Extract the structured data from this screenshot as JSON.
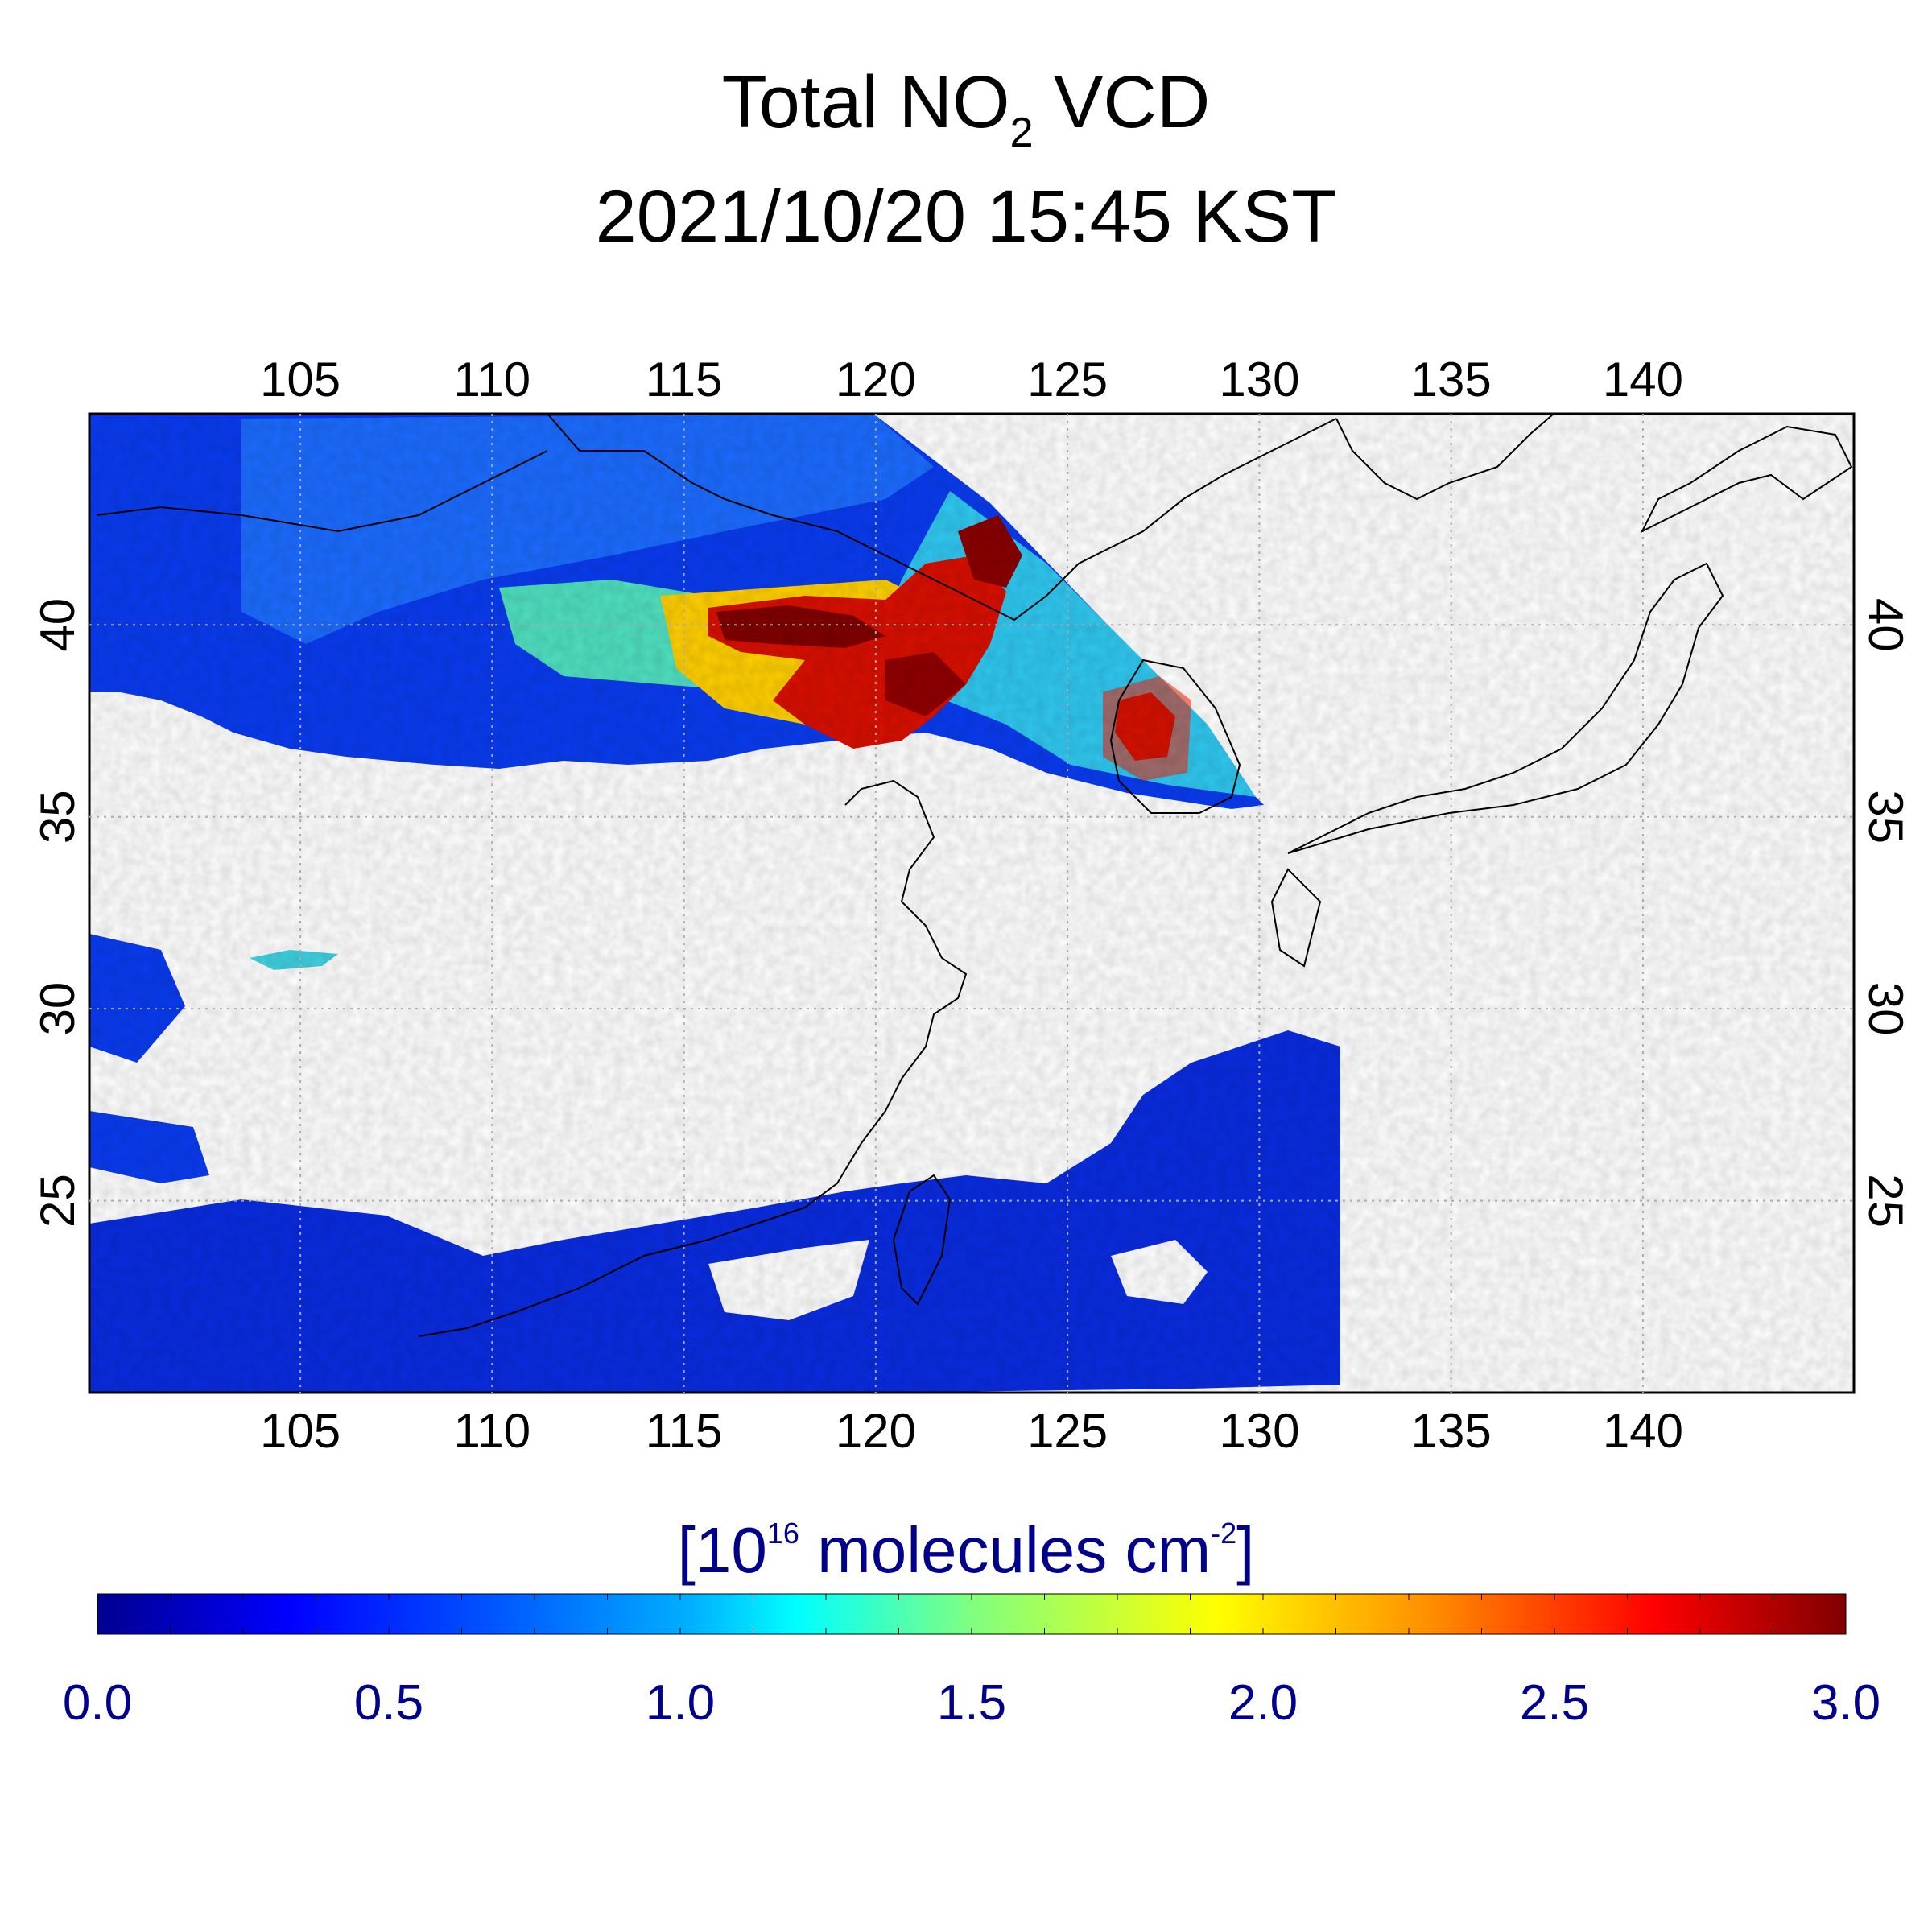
{
  "title": {
    "line1_prefix": "Total NO",
    "line1_subscript": "2",
    "line1_suffix": " VCD",
    "line2": "2021/10/20 15:45 KST"
  },
  "map": {
    "lon_range": [
      99.5,
      145.5
    ],
    "lat_range": [
      20,
      45.5
    ],
    "lon_ticks": [
      "105",
      "110",
      "115",
      "120",
      "125",
      "130",
      "135",
      "140"
    ],
    "lat_ticks": [
      "40",
      "35",
      "30",
      "25"
    ],
    "grid": true,
    "colors": {
      "land_outline": "#000000",
      "no_data": "#ffffff"
    }
  },
  "colorbar": {
    "units_prefix": "[10",
    "units_exp": "16",
    "units_mid": " molecules cm",
    "units_exp2": "-2",
    "units_suffix": "]",
    "ticks": [
      "0.0",
      "0.5",
      "1.0",
      "1.5",
      "2.0",
      "2.5",
      "3.0"
    ],
    "range": [
      0,
      3
    ],
    "colormap": "jet",
    "colors": [
      "#00008f",
      "#0000ff",
      "#0080ff",
      "#00ffff",
      "#80ff80",
      "#ffff00",
      "#ff8000",
      "#ff0000",
      "#800000"
    ]
  }
}
